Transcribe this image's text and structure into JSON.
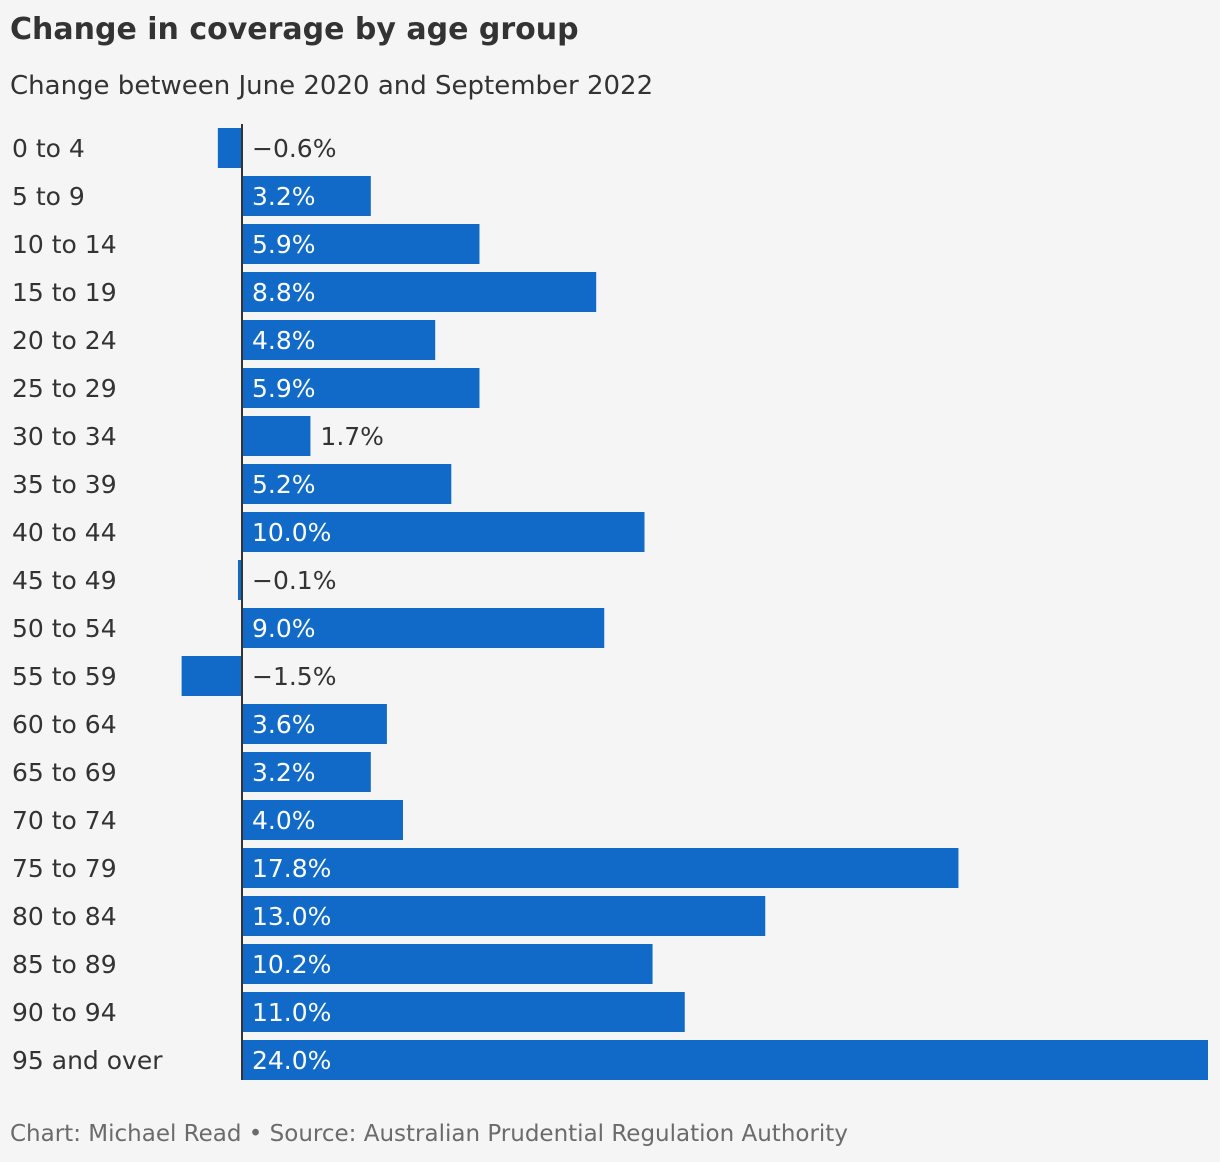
{
  "header": {
    "title": "Change in coverage by age group",
    "subtitle": "Change between June 2020 and September 2022"
  },
  "footer": {
    "source": "Chart: Michael Read • Source: Australian Prudential Regulation Authority"
  },
  "colors": {
    "bar": "#116ac8",
    "axis": "#333333",
    "label_inside": "#ffffff",
    "label_outside": "#333333"
  },
  "chart_data": {
    "type": "bar",
    "orientation": "horizontal",
    "title": "Change in coverage by age group",
    "subtitle": "Change between June 2020 and September 2022",
    "categories": [
      "0 to 4",
      "5 to 9",
      "10 to 14",
      "15 to 19",
      "20 to 24",
      "25 to 29",
      "30 to 34",
      "35 to 39",
      "40 to 44",
      "45 to 49",
      "50 to 54",
      "55 to 59",
      "60 to 64",
      "65 to 69",
      "70 to 74",
      "75 to 79",
      "80 to 84",
      "85 to 89",
      "90 to 94",
      "95 and over"
    ],
    "values": [
      -0.6,
      3.2,
      5.9,
      8.8,
      4.8,
      5.9,
      1.7,
      5.2,
      10.0,
      -0.1,
      9.0,
      -1.5,
      3.6,
      3.2,
      4.0,
      17.8,
      13.0,
      10.2,
      11.0,
      24.0
    ],
    "value_labels": [
      "−0.6%",
      "3.2%",
      "5.9%",
      "8.8%",
      "4.8%",
      "5.9%",
      "1.7%",
      "5.2%",
      "10.0%",
      "−0.1%",
      "9.0%",
      "−1.5%",
      "3.6%",
      "3.2%",
      "4.0%",
      "17.8%",
      "13.0%",
      "10.2%",
      "11.0%",
      "24.0%"
    ],
    "unit": "%",
    "xlim": [
      -1.5,
      24.0
    ],
    "grid": false,
    "legend": "none"
  }
}
